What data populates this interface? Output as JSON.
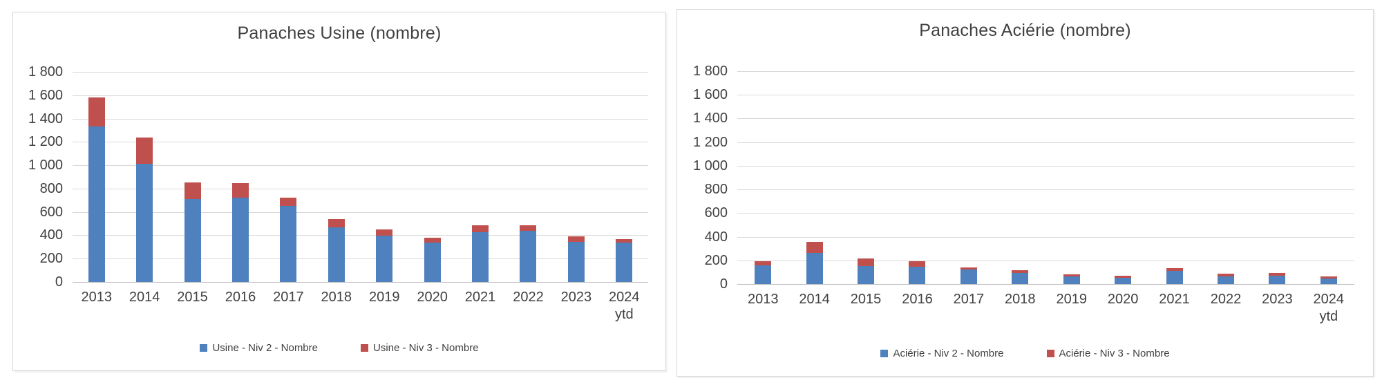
{
  "ui": {
    "background_color": "#FFFFFF",
    "panel_border_color": "#D6D6D6",
    "grid_color": "#D9D9D9",
    "axis_line_color": "#BFBFBF",
    "text_color": "#404040"
  },
  "chart_data": [
    {
      "type": "bar",
      "stacked": true,
      "title": "Panaches Usine (nombre)",
      "categories": [
        "2013",
        "2014",
        "2015",
        "2016",
        "2017",
        "2018",
        "2019",
        "2020",
        "2021",
        "2022",
        "2023",
        "2024\nytd"
      ],
      "series": [
        {
          "name": "Usine - Niv 2 - Nombre",
          "color": "#4E81BD",
          "values": [
            1330,
            1010,
            710,
            725,
            650,
            470,
            395,
            340,
            425,
            440,
            345,
            340
          ]
        },
        {
          "name": "Usine - Niv 3 - Nombre",
          "color": "#C0504D",
          "values": [
            250,
            230,
            145,
            120,
            70,
            70,
            55,
            40,
            60,
            45,
            45,
            25
          ]
        }
      ],
      "ylim": [
        0,
        1800
      ],
      "y_tick_step": 200,
      "y_tick_labels": [
        "0",
        "200",
        "400",
        "600",
        "800",
        "1 000",
        "1 200",
        "1 400",
        "1 600",
        "1 800"
      ],
      "grid": true,
      "legend_position": "bottom"
    },
    {
      "type": "bar",
      "stacked": true,
      "title": "Panaches Aciérie (nombre)",
      "categories": [
        "2013",
        "2014",
        "2015",
        "2016",
        "2017",
        "2018",
        "2019",
        "2020",
        "2021",
        "2022",
        "2023",
        "2024\nytd"
      ],
      "series": [
        {
          "name": "Aciérie - Niv 2 - Nombre",
          "color": "#4E81BD",
          "values": [
            155,
            265,
            150,
            145,
            120,
            95,
            65,
            50,
            110,
            65,
            70,
            45
          ]
        },
        {
          "name": "Aciérie - Niv 3 - Nombre",
          "color": "#C0504D",
          "values": [
            40,
            90,
            65,
            50,
            20,
            20,
            15,
            20,
            25,
            20,
            25,
            20
          ]
        }
      ],
      "ylim": [
        0,
        1800
      ],
      "y_tick_step": 200,
      "y_tick_labels": [
        "0",
        "200",
        "400",
        "600",
        "800",
        "1 000",
        "1 200",
        "1 400",
        "1 600",
        "1 800"
      ],
      "grid": true,
      "legend_position": "bottom"
    }
  ]
}
